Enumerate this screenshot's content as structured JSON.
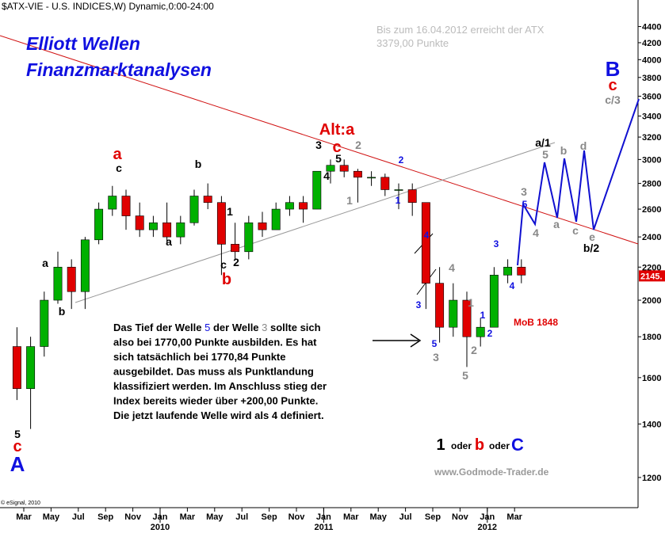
{
  "chart_data": {
    "type": "candlestick",
    "title": "$ATX-VIE - U.S. INDICES,W) Dynamic,0:00-24:00",
    "subtitle": [
      "Elliott Wellen",
      "Finanzmarktanalysen"
    ],
    "target_note": [
      "Bis zum 16.04.2012 erreicht der ATX",
      "3379,00 Punkte"
    ],
    "x": [
      "2009-02",
      "2009-03",
      "2009-04",
      "2009-05",
      "2009-06",
      "2009-07",
      "2009-08",
      "2009-09",
      "2009-10",
      "2009-11",
      "2009-12",
      "2010-01",
      "2010-02",
      "2010-03",
      "2010-04",
      "2010-05",
      "2010-06",
      "2010-07",
      "2010-08",
      "2010-09",
      "2010-10",
      "2010-11",
      "2010-12",
      "2011-01",
      "2011-02",
      "2011-03",
      "2011-04",
      "2011-05",
      "2011-06",
      "2011-07",
      "2011-08",
      "2011-09",
      "2011-10",
      "2011-11",
      "2011-12",
      "2012-01",
      "2012-02",
      "2012-03"
    ],
    "open": [
      1750,
      1550,
      1750,
      2000,
      2200,
      2050,
      2380,
      2600,
      2700,
      2550,
      2450,
      2500,
      2400,
      2500,
      2700,
      2650,
      2350,
      2300,
      2500,
      2450,
      2600,
      2650,
      2600,
      2900,
      2950,
      2900,
      2850,
      2850,
      2750,
      2750,
      2650,
      2100,
      1850,
      2000,
      1800,
      1850,
      2150,
      2200
    ],
    "high": [
      1850,
      1800,
      2050,
      2300,
      2250,
      2400,
      2650,
      2780,
      2750,
      2650,
      2550,
      2650,
      2550,
      2750,
      2800,
      2700,
      2500,
      2550,
      2580,
      2650,
      2700,
      2700,
      2900,
      3000,
      3000,
      2920,
      2900,
      2880,
      2800,
      2800,
      2650,
      2200,
      2100,
      2050,
      1900,
      2200,
      2250,
      2250
    ],
    "low": [
      1500,
      1380,
      1700,
      1980,
      1950,
      1950,
      2350,
      2550,
      2450,
      2400,
      2400,
      2350,
      2350,
      2480,
      2600,
      2150,
      2250,
      2250,
      2400,
      2450,
      2550,
      2500,
      2600,
      2800,
      2850,
      2650,
      2780,
      2700,
      2600,
      2550,
      1950,
      1770,
      1800,
      1650,
      1750,
      1850,
      2100,
      2100
    ],
    "close": [
      1550,
      1750,
      2000,
      2200,
      2050,
      2380,
      2600,
      2700,
      2550,
      2450,
      2500,
      2400,
      2500,
      2700,
      2650,
      2350,
      2300,
      2500,
      2450,
      2600,
      2650,
      2600,
      2900,
      2950,
      2900,
      2850,
      2850,
      2750,
      2750,
      2650,
      2100,
      1850,
      2000,
      1800,
      1850,
      2150,
      2200,
      2150
    ],
    "up_color": "#00b000",
    "down_color": "#e00000",
    "log_scale": true,
    "xlim": [
      "2009-01",
      "2012-12"
    ],
    "xticks": [
      {
        "value": "2009-03",
        "label": "Mar"
      },
      {
        "value": "2009-05",
        "label": "May"
      },
      {
        "value": "2009-07",
        "label": "Jul"
      },
      {
        "value": "2009-09",
        "label": "Sep"
      },
      {
        "value": "2009-11",
        "label": "Nov"
      },
      {
        "value": "2010-01",
        "label": "Jan"
      },
      {
        "value": "2010-03",
        "label": "Mar"
      },
      {
        "value": "2010-05",
        "label": "May"
      },
      {
        "value": "2010-07",
        "label": "Jul"
      },
      {
        "value": "2010-09",
        "label": "Sep"
      },
      {
        "value": "2010-11",
        "label": "Nov"
      },
      {
        "value": "2011-01",
        "label": "Jan"
      },
      {
        "value": "2011-03",
        "label": "Mar"
      },
      {
        "value": "2011-05",
        "label": "May"
      },
      {
        "value": "2011-07",
        "label": "Jul"
      },
      {
        "value": "2011-09",
        "label": "Sep"
      },
      {
        "value": "2011-11",
        "label": "Nov"
      },
      {
        "value": "2012-01",
        "label": "Jan"
      },
      {
        "value": "2012-03",
        "label": "Mar"
      }
    ],
    "year_labels": [
      {
        "value": "2010-01",
        "label": "2010"
      },
      {
        "value": "2011-01",
        "label": "2011"
      },
      {
        "value": "2012-01",
        "label": "2012"
      }
    ],
    "ylim": [
      1100,
      4750
    ],
    "yticks": [
      1200,
      1400,
      1600,
      1800,
      2000,
      2200,
      2400,
      2600,
      2800,
      3000,
      3200,
      3400,
      3600,
      3800,
      4000,
      4200,
      4400
    ],
    "last_price": {
      "value": 2145,
      "label": "2145."
    },
    "annotations": [
      "5",
      "c",
      "A",
      "a",
      "b",
      "a",
      "c",
      "a",
      "b",
      "1",
      "c",
      "2",
      "b",
      "Alt:a",
      "c",
      "3",
      "5",
      "4",
      "2",
      "1",
      "2",
      "1",
      "4",
      "3",
      "5",
      "3",
      "4",
      "1",
      "1",
      "2",
      "2",
      "5",
      "3",
      "4",
      "3",
      "5",
      "4",
      "a/1",
      "5",
      "b",
      "a",
      "c",
      "d",
      "e",
      "b/2",
      "B",
      "c",
      "c/3",
      "MoB 1848"
    ],
    "commentary": [
      [
        "Das Tief der Welle ",
        "5",
        " der Welle ",
        "3",
        " sollte sich"
      ],
      [
        "also bei 1770,00 Punkte ausbilden. Es hat"
      ],
      [
        "sich tatsächlich bei 1770,84 Punkte"
      ],
      [
        "ausgebildet. Das muss als Punktlandung"
      ],
      [
        "klassifiziert werden. Im Anschluss stieg der"
      ],
      [
        "Index bereits wieder über +200,00 Punkte."
      ],
      [
        "Die jetzt laufende Welle wird als 4 definiert."
      ]
    ],
    "scenario": [
      "1",
      "oder",
      "b",
      "oder",
      "C"
    ],
    "website": "www.Godmode-Trader.de",
    "copyright": "© eSignal, 2010"
  }
}
